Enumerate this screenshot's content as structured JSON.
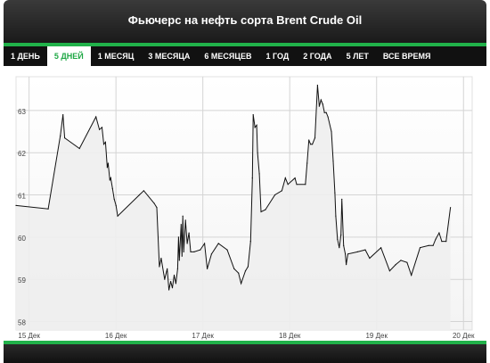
{
  "title": "Фьючерс на нефть сорта Brent Crude Oil",
  "tabs": [
    {
      "label": "1 ДЕНЬ",
      "active": false
    },
    {
      "label": "5 ДНЕЙ",
      "active": true
    },
    {
      "label": "1 МЕСЯЦ",
      "active": false
    },
    {
      "label": "3 МЕСЯЦА",
      "active": false
    },
    {
      "label": "6 МЕСЯЦЕВ",
      "active": false
    },
    {
      "label": "1 ГОД",
      "active": false
    },
    {
      "label": "2 ГОДА",
      "active": false
    },
    {
      "label": "5 ЛЕТ",
      "active": false
    },
    {
      "label": "ВСЕ ВРЕМЯ",
      "active": false
    }
  ],
  "colors": {
    "accent": "#21b24a",
    "bar": "#1a1a1a",
    "line": "#111111",
    "area": "#eeeeee",
    "grid": "#d4d4d4"
  },
  "chart_data": {
    "type": "area",
    "x_ticks": [
      "15 Дек",
      "16 Дек",
      "17 Дек",
      "18 Дек",
      "19 Дек",
      "20 Дек"
    ],
    "y_ticks": [
      "58",
      "59",
      "60",
      "61",
      "62",
      "63"
    ],
    "ylim": [
      57.8,
      63.8
    ],
    "xlim": [
      14.85,
      20.1
    ],
    "grid": true,
    "series": [
      {
        "points": [
          [
            14.85,
            60.75
          ],
          [
            15.22,
            60.67
          ],
          [
            15.36,
            62.4
          ],
          [
            15.39,
            62.9
          ],
          [
            15.41,
            62.35
          ],
          [
            15.58,
            62.1
          ],
          [
            15.77,
            62.85
          ],
          [
            15.81,
            62.55
          ],
          [
            15.84,
            62.6
          ],
          [
            15.86,
            62.2
          ],
          [
            15.88,
            62.25
          ],
          [
            15.9,
            61.65
          ],
          [
            15.91,
            61.75
          ],
          [
            15.93,
            61.35
          ],
          [
            15.94,
            61.4
          ],
          [
            15.96,
            61.15
          ],
          [
            15.98,
            60.9
          ],
          [
            16.0,
            60.75
          ],
          [
            16.02,
            60.5
          ],
          [
            16.27,
            61.0
          ],
          [
            16.32,
            61.1
          ],
          [
            16.44,
            60.8
          ],
          [
            16.47,
            60.7
          ],
          [
            16.5,
            59.3
          ],
          [
            16.52,
            59.5
          ],
          [
            16.56,
            59.0
          ],
          [
            16.59,
            59.25
          ],
          [
            16.61,
            58.75
          ],
          [
            16.63,
            58.95
          ],
          [
            16.65,
            58.8
          ],
          [
            16.67,
            59.1
          ],
          [
            16.69,
            58.9
          ],
          [
            16.71,
            59.25
          ],
          [
            16.72,
            60.0
          ],
          [
            16.73,
            59.45
          ],
          [
            16.75,
            60.3
          ],
          [
            16.76,
            59.55
          ],
          [
            16.77,
            60.5
          ],
          [
            16.78,
            59.65
          ],
          [
            16.8,
            60.4
          ],
          [
            16.82,
            59.85
          ],
          [
            16.84,
            60.1
          ],
          [
            16.86,
            59.65
          ],
          [
            16.9,
            59.65
          ],
          [
            16.97,
            59.7
          ],
          [
            17.02,
            59.85
          ],
          [
            17.05,
            59.25
          ],
          [
            17.1,
            59.6
          ],
          [
            17.18,
            59.85
          ],
          [
            17.28,
            59.7
          ],
          [
            17.36,
            59.25
          ],
          [
            17.41,
            59.15
          ],
          [
            17.44,
            58.9
          ],
          [
            17.49,
            59.2
          ],
          [
            17.52,
            59.3
          ],
          [
            17.55,
            59.9
          ],
          [
            17.57,
            61.4
          ],
          [
            17.58,
            62.9
          ],
          [
            17.6,
            62.6
          ],
          [
            17.62,
            62.65
          ],
          [
            17.63,
            62.0
          ],
          [
            17.65,
            61.5
          ],
          [
            17.67,
            60.6
          ],
          [
            17.72,
            60.65
          ],
          [
            17.83,
            61.0
          ],
          [
            17.91,
            61.1
          ],
          [
            17.95,
            61.4
          ],
          [
            17.98,
            61.25
          ],
          [
            18.06,
            61.4
          ],
          [
            18.08,
            61.25
          ],
          [
            18.18,
            61.25
          ],
          [
            18.2,
            61.75
          ],
          [
            18.22,
            62.3
          ],
          [
            18.24,
            62.2
          ],
          [
            18.26,
            62.2
          ],
          [
            18.29,
            62.35
          ],
          [
            18.32,
            63.6
          ],
          [
            18.34,
            63.1
          ],
          [
            18.36,
            63.25
          ],
          [
            18.38,
            63.15
          ],
          [
            18.4,
            62.95
          ],
          [
            18.42,
            62.95
          ],
          [
            18.44,
            62.85
          ],
          [
            18.48,
            62.5
          ],
          [
            18.5,
            61.8
          ],
          [
            18.52,
            61.05
          ],
          [
            18.53,
            60.5
          ],
          [
            18.55,
            59.95
          ],
          [
            18.57,
            59.75
          ],
          [
            18.59,
            60.05
          ],
          [
            18.6,
            60.9
          ],
          [
            18.62,
            59.8
          ],
          [
            18.64,
            59.6
          ],
          [
            18.65,
            59.35
          ],
          [
            18.67,
            59.6
          ],
          [
            18.78,
            59.65
          ],
          [
            18.87,
            59.7
          ],
          [
            18.92,
            59.5
          ],
          [
            19.05,
            59.75
          ],
          [
            19.15,
            59.2
          ],
          [
            19.22,
            59.35
          ],
          [
            19.28,
            59.45
          ],
          [
            19.35,
            59.4
          ],
          [
            19.4,
            59.1
          ],
          [
            19.5,
            59.75
          ],
          [
            19.6,
            59.8
          ],
          [
            19.65,
            59.8
          ],
          [
            19.68,
            59.95
          ],
          [
            19.72,
            60.1
          ],
          [
            19.75,
            59.9
          ],
          [
            19.8,
            59.9
          ],
          [
            19.85,
            60.7
          ]
        ]
      }
    ]
  }
}
